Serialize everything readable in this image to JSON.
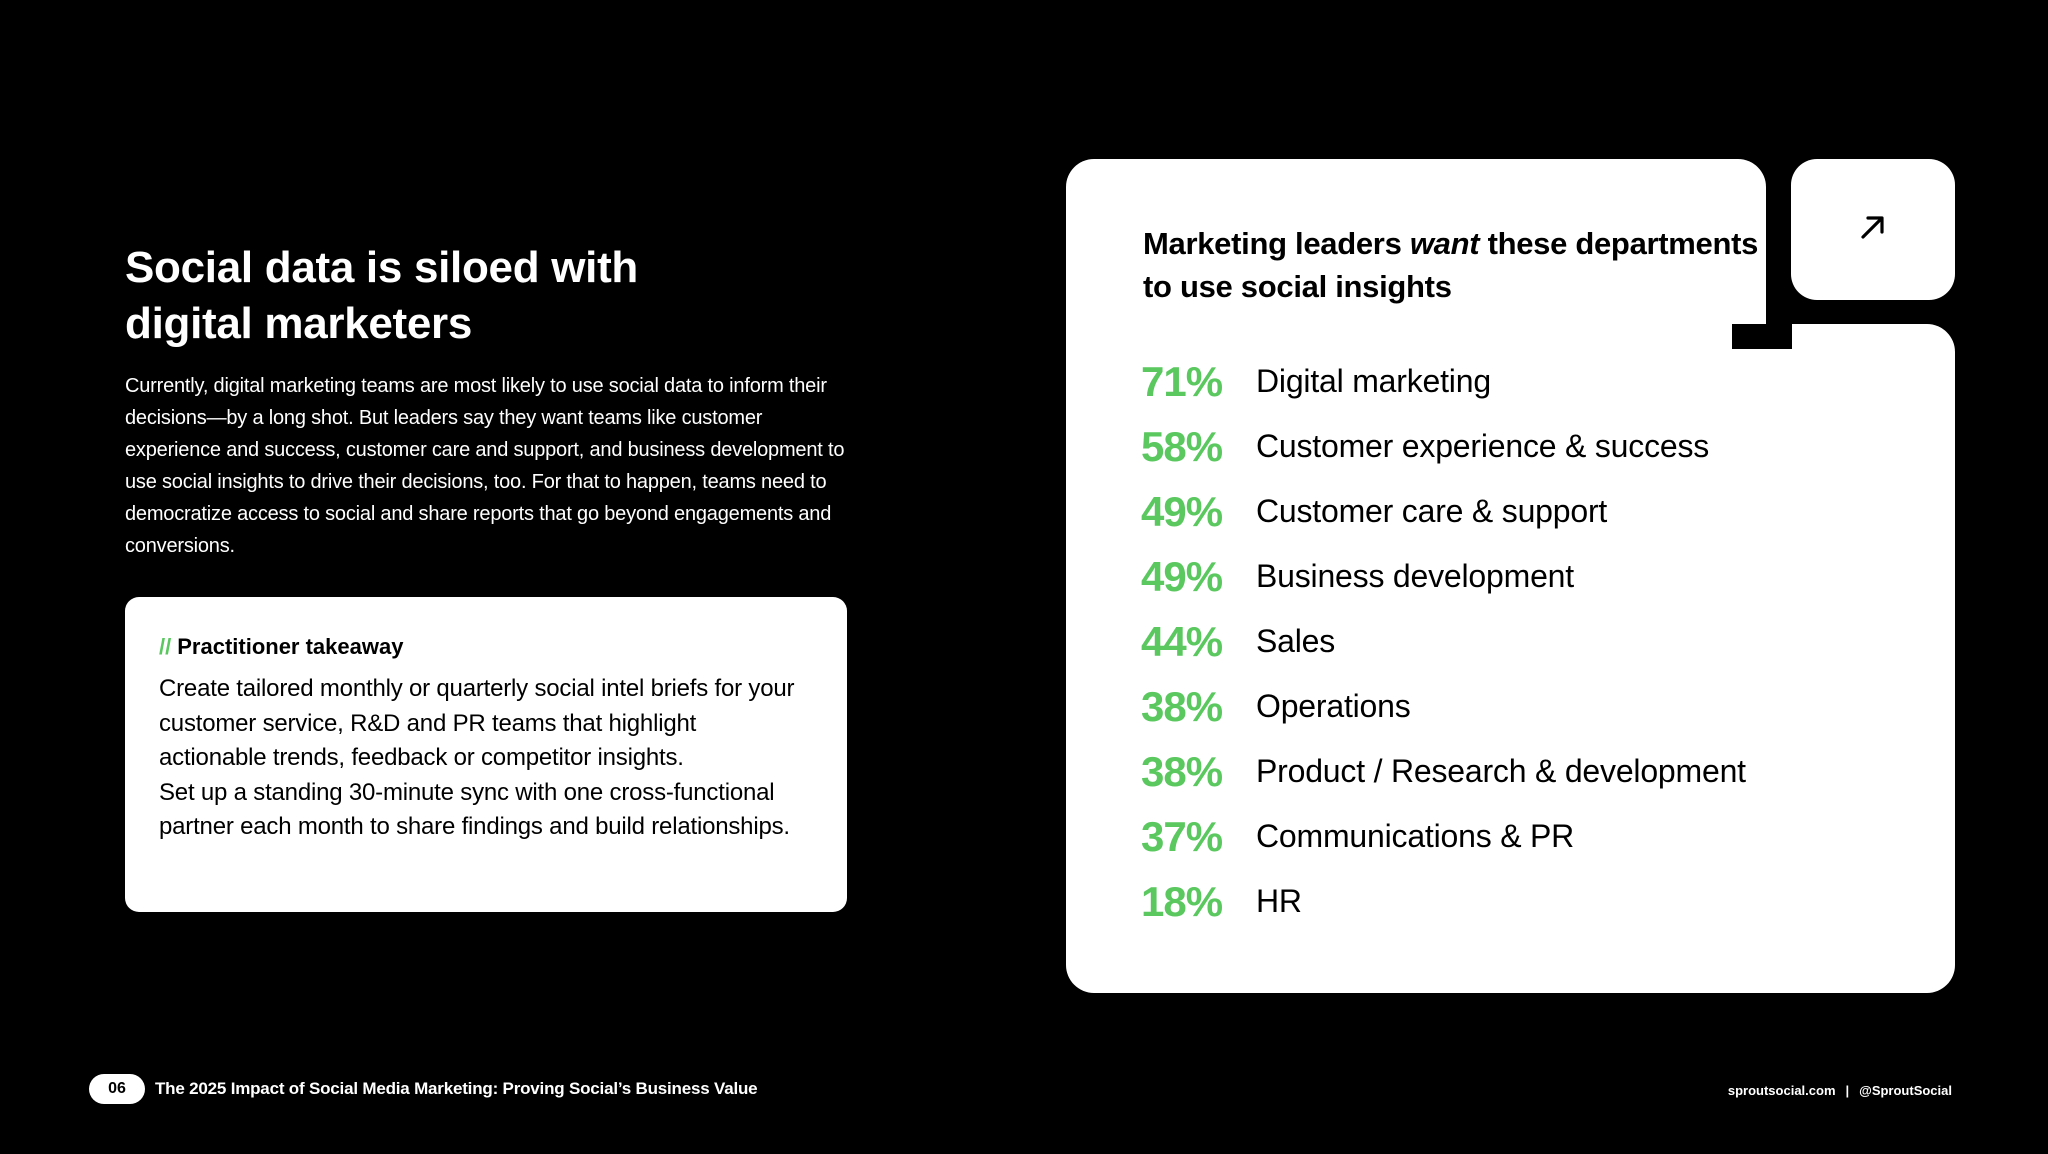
{
  "left": {
    "headline_line1": "Social data is siloed with",
    "headline_line2": "digital marketers",
    "body": "Currently, digital marketing teams are most likely to use social data to inform their decisions—by a long shot. But leaders say they want teams like customer experience and success, customer care and support, and business development to use social insights to drive their decisions, too. For that to happen, teams need to democratize access to social and share reports that go beyond engagements and conversions."
  },
  "takeaway": {
    "marker": "//",
    "title": "Practitioner takeaway",
    "paragraph1": "Create tailored monthly or quarterly social intel briefs for your customer service, R&D and PR teams that highlight actionable trends, feedback or competitor insights.",
    "paragraph2": "Set up a standing 30-minute sync with one cross-functional partner each month to share findings and build relationships."
  },
  "stats": {
    "title_part1": "Marketing leaders ",
    "title_emphasis": "want",
    "title_part2": " these departments to use social insights",
    "corner_icon": "arrow-up-right-icon",
    "accent_color": "#5ac85f",
    "rows": [
      {
        "pct": "71%",
        "label": "Digital marketing"
      },
      {
        "pct": "58%",
        "label": "Customer experience & success"
      },
      {
        "pct": "49%",
        "label": "Customer care & support"
      },
      {
        "pct": "49%",
        "label": "Business development"
      },
      {
        "pct": "44%",
        "label": "Sales"
      },
      {
        "pct": "38%",
        "label": "Operations"
      },
      {
        "pct": "38%",
        "label": "Product / Research & development"
      },
      {
        "pct": "37%",
        "label": "Communications & PR"
      },
      {
        "pct": "18%",
        "label": "HR"
      }
    ]
  },
  "footer": {
    "page_number": "06",
    "report_title": "The 2025 Impact of Social Media Marketing: Proving Social’s Business Value",
    "website": "sproutsocial.com",
    "separator": "|",
    "handle": "@SproutSocial"
  }
}
